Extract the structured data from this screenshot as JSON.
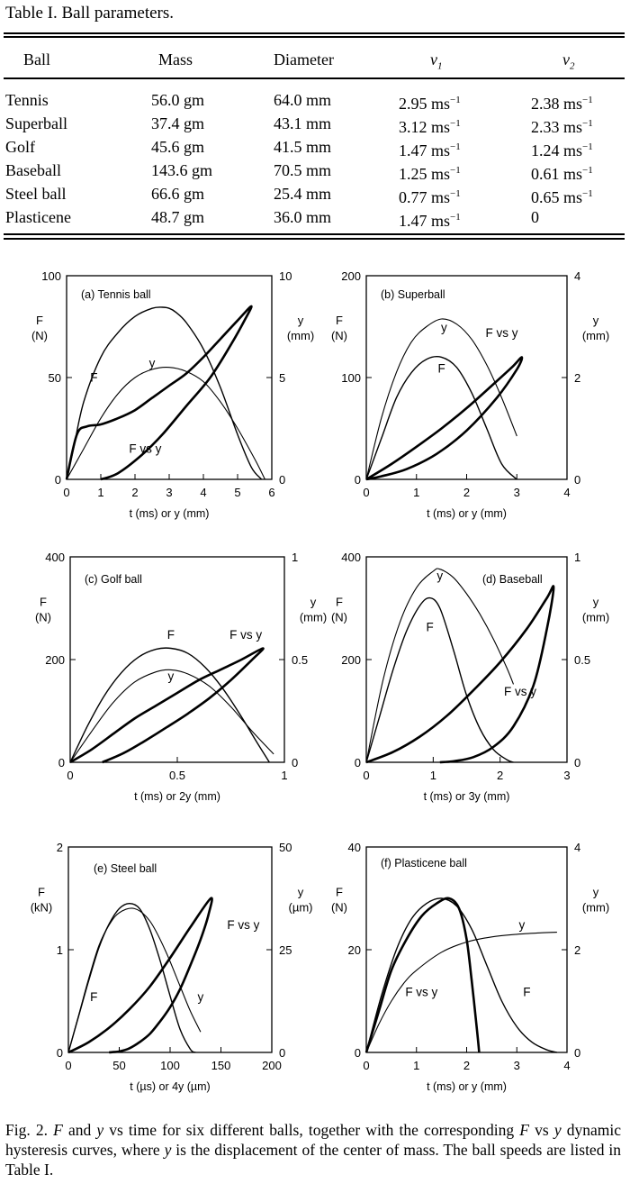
{
  "table": {
    "caption": "Table I.  Ball parameters.",
    "headers": [
      "Ball",
      "Mass",
      "Diameter",
      "v",
      "v"
    ],
    "header_subs": [
      "1",
      "2"
    ],
    "rows": [
      [
        "Tennis",
        "56.0  gm",
        "64.0  mm",
        "2.95  ms",
        "2.38  ms"
      ],
      [
        "Superball",
        "37.4  gm",
        "43.1  mm",
        "3.12  ms",
        "2.33  ms"
      ],
      [
        "Golf",
        "45.6  gm",
        "41.5  mm",
        "1.47  ms",
        "1.24  ms"
      ],
      [
        "Baseball",
        "143.6  gm",
        "70.5  mm",
        "1.25  ms",
        "0.61  ms"
      ],
      [
        "Steel ball",
        "66.6  gm",
        "25.4  mm",
        "0.77  ms",
        "0.65  ms"
      ],
      [
        "Plasticene",
        "48.7  gm",
        "36.0  mm",
        "1.47  ms",
        "0"
      ]
    ],
    "unit_sup": "−1"
  },
  "chart_data": [
    {
      "type": "line",
      "title": "(a) Tennis ball",
      "xlabel": "t (ms)   or   y (mm)",
      "ylabel_left": [
        "F",
        "(N)"
      ],
      "ylabel_right": [
        "y",
        "(mm)"
      ],
      "xlim": [
        0,
        6
      ],
      "ylim_left": [
        0,
        100
      ],
      "ylim_right": [
        0,
        10
      ],
      "xticks": [
        "0",
        "1",
        "2",
        "3",
        "4",
        "5",
        "6"
      ],
      "yticks_left": [
        "0",
        "50",
        "100"
      ],
      "yticks_right": [
        "0",
        "5",
        "10"
      ],
      "curve_labels": [
        "F",
        "y",
        "F vs y"
      ],
      "series": [
        {
          "name": "F",
          "x": [
            0,
            0.2,
            0.5,
            1,
            1.5,
            2,
            2.5,
            2.8,
            3,
            3.2,
            3.5,
            4,
            4.5,
            5,
            5.4,
            5.7
          ],
          "y": [
            0,
            15,
            38,
            60,
            72,
            80,
            84,
            84.5,
            84,
            82,
            77,
            64,
            45,
            22,
            6,
            0
          ]
        },
        {
          "name": "y",
          "x": [
            0,
            0.5,
            1,
            1.5,
            2,
            2.5,
            3,
            3.5,
            4,
            4.5,
            5,
            5.5,
            5.8
          ],
          "y": [
            0,
            1.5,
            3,
            4.2,
            5,
            5.4,
            5.5,
            5.3,
            4.8,
            3.8,
            2.5,
            1,
            0
          ]
        },
        {
          "name": "F vs y",
          "x": [
            0,
            0.3,
            0.6,
            1,
            1.5,
            2,
            2.5,
            3,
            3.5,
            4,
            4.5,
            5,
            5.4,
            5.2,
            4.8,
            4.2,
            3.5,
            2.8,
            2.2,
            1.5,
            1
          ],
          "y": [
            0,
            22,
            26,
            27,
            30,
            34,
            40,
            46,
            52,
            60,
            69,
            78,
            85,
            78,
            66,
            50,
            36,
            22,
            12,
            3,
            0
          ]
        }
      ]
    },
    {
      "type": "line",
      "title": "(b) Superball",
      "xlabel": "t (ms)   or   y (mm)",
      "ylabel_left": [
        "F",
        "(N)"
      ],
      "ylabel_right": [
        "y",
        "(mm)"
      ],
      "xlim": [
        0,
        4
      ],
      "ylim_left": [
        0,
        200
      ],
      "ylim_right": [
        0,
        4
      ],
      "xticks": [
        "0",
        "1",
        "2",
        "3",
        "4"
      ],
      "yticks_left": [
        "0",
        "100",
        "200"
      ],
      "yticks_right": [
        "0",
        "2",
        "4"
      ],
      "curve_labels": [
        "y",
        "F",
        "F vs y"
      ],
      "series": [
        {
          "name": "F",
          "x": [
            0,
            0.3,
            0.6,
            0.9,
            1.2,
            1.5,
            1.8,
            2.1,
            2.4,
            2.7,
            3
          ],
          "y": [
            0,
            40,
            80,
            105,
            118,
            120,
            110,
            85,
            50,
            15,
            0
          ]
        },
        {
          "name": "y",
          "x": [
            0,
            0.3,
            0.6,
            0.9,
            1.2,
            1.5,
            1.8,
            2.1,
            2.4,
            2.7,
            3
          ],
          "y": [
            0,
            1.2,
            2.1,
            2.7,
            3.0,
            3.15,
            3.05,
            2.75,
            2.25,
            1.6,
            0.85
          ]
        },
        {
          "name": "F vs y",
          "x": [
            0,
            0.5,
            1,
            1.5,
            2,
            2.5,
            2.9,
            3.1,
            3.0,
            2.6,
            2,
            1.4,
            0.8,
            0.3,
            0
          ],
          "y": [
            0,
            15,
            32,
            50,
            70,
            92,
            110,
            120,
            108,
            80,
            48,
            25,
            10,
            3,
            0
          ]
        }
      ]
    },
    {
      "type": "line",
      "title": "(c) Golf ball",
      "xlabel": "t (ms)   or   2y (mm)",
      "ylabel_left": [
        "F",
        "(N)"
      ],
      "ylabel_right": [
        "y",
        "(mm)"
      ],
      "xlim": [
        0,
        1
      ],
      "ylim_left": [
        0,
        400
      ],
      "ylim_right": [
        0,
        1
      ],
      "xticks": [
        "0",
        "0.5",
        "1"
      ],
      "yticks_left": [
        "0",
        "200",
        "400"
      ],
      "yticks_right": [
        "0",
        "0.5",
        "1"
      ],
      "curve_labels": [
        "F",
        "y",
        "F vs y"
      ],
      "series": [
        {
          "name": "F",
          "x": [
            0,
            0.08,
            0.16,
            0.24,
            0.32,
            0.4,
            0.47,
            0.55,
            0.63,
            0.71,
            0.79,
            0.87,
            0.93
          ],
          "y": [
            0,
            70,
            130,
            175,
            205,
            220,
            222,
            212,
            185,
            145,
            95,
            40,
            0
          ]
        },
        {
          "name": "y",
          "x": [
            0,
            0.1,
            0.2,
            0.3,
            0.4,
            0.47,
            0.55,
            0.65,
            0.75,
            0.85,
            0.95
          ],
          "y": [
            0,
            0.15,
            0.29,
            0.39,
            0.44,
            0.45,
            0.43,
            0.37,
            0.27,
            0.15,
            0.04
          ]
        },
        {
          "name": "F vs y",
          "x": [
            0,
            0.1,
            0.2,
            0.3,
            0.4,
            0.5,
            0.6,
            0.7,
            0.8,
            0.9,
            0.85,
            0.75,
            0.65,
            0.55,
            0.45,
            0.35,
            0.25,
            0.15
          ],
          "y": [
            0,
            25,
            55,
            85,
            110,
            135,
            160,
            180,
            200,
            222,
            200,
            160,
            125,
            95,
            68,
            42,
            18,
            0
          ]
        }
      ]
    },
    {
      "type": "line",
      "title": "(d) Baseball",
      "xlabel": "t (ms)   or   3y (mm)",
      "ylabel_left": [
        "F",
        "(N)"
      ],
      "ylabel_right": [
        "y",
        "(mm)"
      ],
      "xlim": [
        0,
        3
      ],
      "ylim_left": [
        0,
        400
      ],
      "ylim_right": [
        0,
        1
      ],
      "xticks": [
        "0",
        "1",
        "2",
        "3"
      ],
      "yticks_left": [
        "0",
        "200",
        "400"
      ],
      "yticks_right": [
        "0",
        "0.5",
        "1"
      ],
      "curve_labels": [
        "y",
        "F",
        "F vs y"
      ],
      "series": [
        {
          "name": "F",
          "x": [
            0,
            0.2,
            0.4,
            0.6,
            0.8,
            0.95,
            1.1,
            1.3,
            1.5,
            1.7,
            1.9,
            2.1,
            2.2
          ],
          "y": [
            0,
            90,
            180,
            255,
            305,
            320,
            300,
            220,
            130,
            65,
            25,
            5,
            0
          ]
        },
        {
          "name": "y",
          "x": [
            0,
            0.25,
            0.5,
            0.75,
            1,
            1.1,
            1.3,
            1.5,
            1.7,
            1.9,
            2.1,
            2.2
          ],
          "y": [
            0,
            0.4,
            0.68,
            0.85,
            0.93,
            0.94,
            0.9,
            0.82,
            0.72,
            0.6,
            0.46,
            0.38
          ]
        },
        {
          "name": "F vs y",
          "x": [
            0,
            0.4,
            0.8,
            1.2,
            1.6,
            2,
            2.4,
            2.7,
            2.8,
            2.7,
            2.5,
            2.2,
            1.9,
            1.6,
            1.3,
            1.1
          ],
          "y": [
            0,
            20,
            50,
            90,
            140,
            195,
            260,
            320,
            340,
            260,
            150,
            70,
            30,
            10,
            2,
            0
          ]
        }
      ]
    },
    {
      "type": "line",
      "title": "(e) Steel ball",
      "xlabel": "t (µs)   or   4y (µm)",
      "ylabel_left": [
        "F",
        "(kN)"
      ],
      "ylabel_right": [
        "y",
        "(µm)"
      ],
      "xlim": [
        0,
        200
      ],
      "ylim_left": [
        0,
        2
      ],
      "ylim_right": [
        0,
        50
      ],
      "xticks": [
        "0",
        "50",
        "100",
        "150",
        "200"
      ],
      "yticks_left": [
        "0",
        "1",
        "2"
      ],
      "yticks_right": [
        "0",
        "25",
        "50"
      ],
      "curve_labels": [
        "F",
        "y",
        "F vs y"
      ],
      "series": [
        {
          "name": "F",
          "x": [
            0,
            10,
            20,
            30,
            40,
            50,
            60,
            70,
            80,
            90,
            100,
            110,
            120,
            125
          ],
          "y": [
            0,
            0.35,
            0.7,
            1.02,
            1.25,
            1.4,
            1.45,
            1.4,
            1.2,
            0.9,
            0.55,
            0.22,
            0.03,
            0
          ]
        },
        {
          "name": "y",
          "x": [
            0,
            10,
            20,
            30,
            40,
            50,
            65,
            80,
            95,
            110,
            120,
            130
          ],
          "y": [
            0,
            9,
            18,
            26,
            31,
            34,
            35,
            32,
            25,
            16,
            10,
            5
          ]
        },
        {
          "name": "F vs y",
          "x": [
            0,
            20,
            40,
            60,
            80,
            100,
            120,
            140,
            138,
            130,
            120,
            110,
            100,
            90,
            80,
            70,
            60,
            50,
            40
          ],
          "y": [
            0,
            0.1,
            0.24,
            0.42,
            0.64,
            0.92,
            1.22,
            1.5,
            1.35,
            1.1,
            0.85,
            0.62,
            0.44,
            0.3,
            0.18,
            0.1,
            0.04,
            0.01,
            0
          ]
        }
      ]
    },
    {
      "type": "line",
      "title": "(f) Plasticene ball",
      "xlabel": "t (ms)   or   y (mm)",
      "ylabel_left": [
        "F",
        "(N)"
      ],
      "ylabel_right": [
        "y",
        "(mm)"
      ],
      "xlim": [
        0,
        4
      ],
      "ylim_left": [
        0,
        40
      ],
      "ylim_right": [
        0,
        4
      ],
      "xticks": [
        "0",
        "1",
        "2",
        "3",
        "4"
      ],
      "yticks_left": [
        "0",
        "20",
        "40"
      ],
      "yticks_right": [
        "0",
        "2",
        "4"
      ],
      "curve_labels": [
        "y",
        "F vs y",
        "F"
      ],
      "series": [
        {
          "name": "F",
          "x": [
            0,
            0.3,
            0.6,
            0.9,
            1.2,
            1.5,
            1.8,
            2.1,
            2.4,
            2.7,
            3,
            3.3,
            3.6,
            3.8
          ],
          "y": [
            0,
            11,
            20,
            26,
            29,
            30,
            28.5,
            24,
            17,
            10,
            5,
            2,
            0.5,
            0
          ]
        },
        {
          "name": "y",
          "x": [
            0,
            0.25,
            0.5,
            0.75,
            1,
            1.5,
            2,
            2.5,
            3,
            3.5,
            3.8
          ],
          "y": [
            0,
            0.55,
            1,
            1.35,
            1.6,
            1.95,
            2.15,
            2.25,
            2.3,
            2.33,
            2.34
          ]
        },
        {
          "name": "F vs y",
          "x": [
            0,
            0.25,
            0.5,
            0.8,
            1.1,
            1.4,
            1.65,
            1.85,
            2.0,
            2.1,
            2.2,
            2.25
          ],
          "y": [
            0,
            8,
            16,
            22,
            26.5,
            29,
            30,
            28,
            22,
            14,
            5,
            0
          ]
        }
      ]
    }
  ],
  "figure_caption": "Fig. 2.  F and y vs time for six different balls, together with the corresponding F vs y dynamic hysteresis curves, where y is the displacement of the center of mass. The ball speeds are listed in Table I."
}
